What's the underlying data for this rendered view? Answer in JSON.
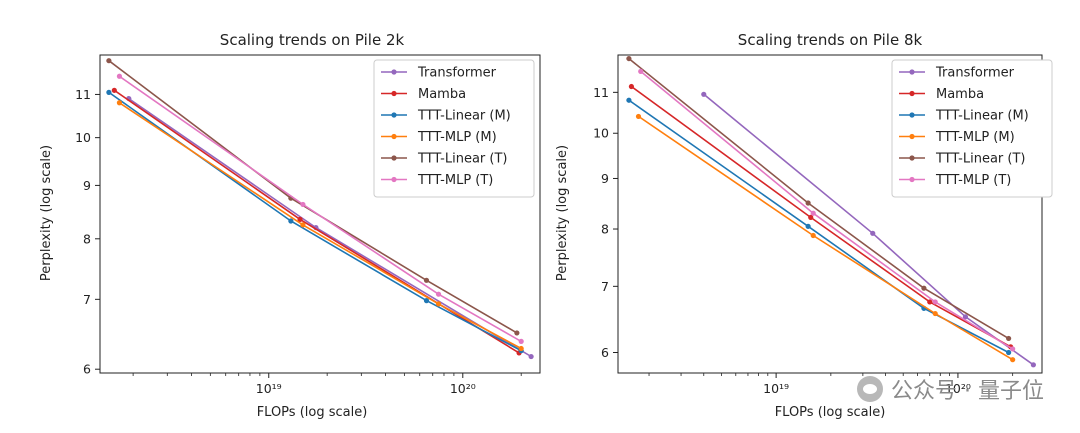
{
  "watermark": {
    "icon": "wechat-icon",
    "text": "公众号 · 量子位"
  },
  "chart_data": [
    {
      "type": "line",
      "title": "Scaling trends on Pile 2k",
      "xlabel": "FLOPs (log scale)",
      "ylabel": "Perplexity (log scale)",
      "xscale": "log",
      "yscale": "log",
      "xlim": [
        1.35e+18,
        2.5e+20
      ],
      "ylim": [
        5.95,
        12.0
      ],
      "xticks": [
        {
          "value": 1e+19,
          "label": "10¹⁹"
        },
        {
          "value": 1e+20,
          "label": "10²⁰"
        }
      ],
      "yticks": [
        6,
        7,
        8,
        9,
        10,
        11
      ],
      "grid": false,
      "legend": "top-right",
      "series": [
        {
          "name": "Transformer",
          "color": "#9467bd",
          "x": [
            1.9e+18,
            1.75e+19,
            2.25e+20
          ],
          "y": [
            10.9,
            8.2,
            6.17
          ]
        },
        {
          "name": "Mamba",
          "color": "#d62728",
          "x": [
            1.6e+18,
            1.45e+19,
            1.95e+20
          ],
          "y": [
            11.1,
            8.35,
            6.22
          ]
        },
        {
          "name": "TTT-Linear (M)",
          "color": "#1f77b4",
          "x": [
            1.5e+18,
            1.3e+19,
            6.5e+19,
            2e+20
          ],
          "y": [
            11.05,
            8.32,
            6.98,
            6.25
          ]
        },
        {
          "name": "TTT-MLP (M)",
          "color": "#ff7f0e",
          "x": [
            1.7e+18,
            1.5e+19,
            7.5e+19,
            2e+20
          ],
          "y": [
            10.8,
            8.25,
            6.93,
            6.28
          ]
        },
        {
          "name": "TTT-Linear (T)",
          "color": "#8c564b",
          "x": [
            1.5e+18,
            1.3e+19,
            6.5e+19,
            1.9e+20
          ],
          "y": [
            11.85,
            8.75,
            7.3,
            6.5
          ]
        },
        {
          "name": "TTT-MLP (T)",
          "color": "#e377c2",
          "x": [
            1.7e+18,
            1.5e+19,
            7.5e+19,
            2e+20
          ],
          "y": [
            11.45,
            8.63,
            7.08,
            6.38
          ]
        }
      ]
    },
    {
      "type": "line",
      "title": "Scaling trends on Pile 8k",
      "xlabel": "FLOPs (log scale)",
      "ylabel": "Perplexity (log scale)",
      "xscale": "log",
      "yscale": "log",
      "xlim": [
        1.35e+18,
        2.9e+20
      ],
      "ylim": [
        5.72,
        12.0
      ],
      "xticks": [
        {
          "value": 1e+19,
          "label": "10¹⁹"
        },
        {
          "value": 1e+20,
          "label": "10²⁰"
        }
      ],
      "yticks": [
        6,
        7,
        8,
        9,
        10,
        11
      ],
      "grid": false,
      "legend": "top-right",
      "series": [
        {
          "name": "Transformer",
          "color": "#9467bd",
          "x": [
            4e+18,
            3.4e+19,
            1.1e+20,
            2.6e+20
          ],
          "y": [
            10.95,
            7.92,
            6.52,
            5.83
          ]
        },
        {
          "name": "Mamba",
          "color": "#d62728",
          "x": [
            1.6e+18,
            1.55e+19,
            7e+19,
            1.95e+20
          ],
          "y": [
            11.15,
            8.22,
            6.75,
            6.08
          ]
        },
        {
          "name": "TTT-Linear (M)",
          "color": "#1f77b4",
          "x": [
            1.55e+18,
            1.5e+19,
            6.5e+19,
            1.9e+20
          ],
          "y": [
            10.8,
            8.05,
            6.65,
            6.0
          ]
        },
        {
          "name": "TTT-MLP (M)",
          "color": "#ff7f0e",
          "x": [
            1.75e+18,
            1.6e+19,
            7.5e+19,
            2e+20
          ],
          "y": [
            10.4,
            7.88,
            6.57,
            5.9
          ]
        },
        {
          "name": "TTT-Linear (T)",
          "color": "#8c564b",
          "x": [
            1.55e+18,
            1.5e+19,
            6.5e+19,
            1.9e+20
          ],
          "y": [
            11.9,
            8.5,
            6.97,
            6.2
          ]
        },
        {
          "name": "TTT-MLP (T)",
          "color": "#e377c2",
          "x": [
            1.8e+18,
            1.6e+19,
            7.5e+19,
            2e+20
          ],
          "y": [
            11.55,
            8.3,
            6.75,
            6.05
          ]
        }
      ]
    }
  ]
}
